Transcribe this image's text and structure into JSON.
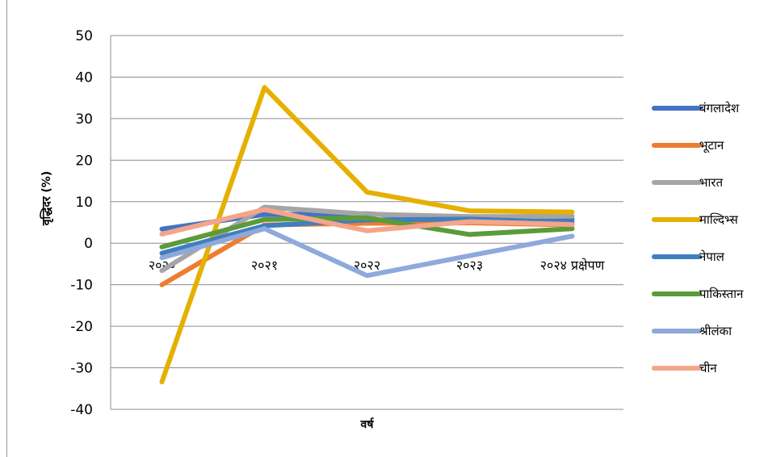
{
  "chart_data": {
    "type": "line",
    "title": "",
    "xlabel": "वर्ष",
    "ylabel": "वृद्धिदर (%)",
    "ylim": [
      -40,
      50
    ],
    "yticks": [
      50,
      40,
      30,
      20,
      10,
      0,
      -10,
      -20,
      -30,
      -40
    ],
    "grid": true,
    "legend_position": "right",
    "categories": [
      "२०२०",
      "२०२१",
      "२०२२",
      "२०२३",
      "२०२४ प्रक्षेपण"
    ],
    "series": [
      {
        "name": "बंगलादेश",
        "color": "#4472C4",
        "values": [
          3.4,
          6.9,
          7.1,
          5.8,
          5.7
        ]
      },
      {
        "name": "भूटान",
        "color": "#ED7D31",
        "values": [
          -10.0,
          4.4,
          4.8,
          4.9,
          4.4
        ]
      },
      {
        "name": "भारत",
        "color": "#A5A5A5",
        "values": [
          -6.6,
          8.7,
          7.0,
          6.4,
          6.5
        ]
      },
      {
        "name": "माल्दिभ्स",
        "color": "#E5B000",
        "values": [
          -33.4,
          37.5,
          12.3,
          7.8,
          7.5
        ]
      },
      {
        "name": "नेपाल",
        "color": "#3F7FBF",
        "values": [
          -2.4,
          4.2,
          5.6,
          5.8,
          5.0
        ]
      },
      {
        "name": "पाकिस्तान",
        "color": "#5B9B3A",
        "values": [
          -0.9,
          5.7,
          6.1,
          2.1,
          3.5
        ]
      },
      {
        "name": "श्रीलंका",
        "color": "#8EA9DB",
        "values": [
          -3.5,
          3.5,
          -7.8,
          -3.0,
          1.7
        ]
      },
      {
        "name": "चीन",
        "color": "#F4A58A",
        "values": [
          2.2,
          8.1,
          3.0,
          5.2,
          4.5
        ]
      }
    ]
  }
}
